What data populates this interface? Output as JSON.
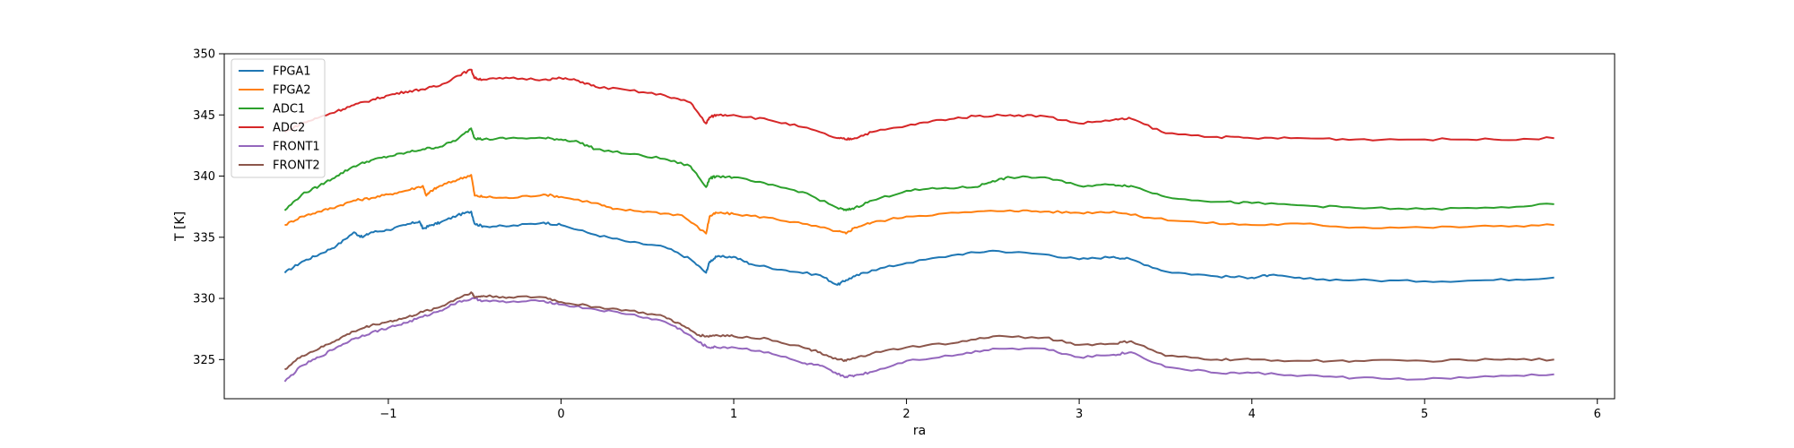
{
  "chart_data": {
    "type": "line",
    "title": "",
    "xlabel": "ra",
    "ylabel": "T [K]",
    "xlim": [
      -1.95,
      6.1
    ],
    "ylim": [
      321.8,
      350
    ],
    "xticks": [
      -1,
      0,
      1,
      2,
      3,
      4,
      5,
      6
    ],
    "xtick_labels": [
      "−1",
      "0",
      "1",
      "2",
      "3",
      "4",
      "5",
      "6"
    ],
    "yticks": [
      325,
      330,
      335,
      340,
      345,
      350
    ],
    "ytick_labels": [
      "325",
      "330",
      "335",
      "340",
      "345",
      "350"
    ],
    "grid": false,
    "legend": "top-left",
    "series": [
      {
        "name": "FPGA1",
        "color": "#1f77b4",
        "x": [
          -1.6,
          -1.5,
          -1.4,
          -1.3,
          -1.2,
          -1.15,
          -1.1,
          -1.0,
          -0.9,
          -0.82,
          -0.8,
          -0.75,
          -0.7,
          -0.6,
          -0.52,
          -0.5,
          -0.45,
          -0.3,
          -0.1,
          0.0,
          0.2,
          0.4,
          0.6,
          0.75,
          0.84,
          0.86,
          0.9,
          1.0,
          1.1,
          1.3,
          1.5,
          1.6,
          1.65,
          1.7,
          1.8,
          2.0,
          2.3,
          2.5,
          2.8,
          3.0,
          3.2,
          3.3,
          3.5,
          3.8,
          4.0,
          4.1,
          4.3,
          4.6,
          5.0,
          5.4,
          5.75
        ],
        "y": [
          332.1,
          333.0,
          333.6,
          334.3,
          335.4,
          335.0,
          335.4,
          335.6,
          336.0,
          336.3,
          335.7,
          336.0,
          336.2,
          336.8,
          337.1,
          336.1,
          335.9,
          335.9,
          336.2,
          336.0,
          335.2,
          334.6,
          334.2,
          333.2,
          332.1,
          333.0,
          333.4,
          333.4,
          332.8,
          332.3,
          331.9,
          331.1,
          331.5,
          331.8,
          332.3,
          332.9,
          333.6,
          333.9,
          333.6,
          333.2,
          333.4,
          333.2,
          332.2,
          331.8,
          331.7,
          331.9,
          331.6,
          331.5,
          331.4,
          331.5,
          331.7
        ]
      },
      {
        "name": "FPGA2",
        "color": "#ff7f0e",
        "x": [
          -1.6,
          -1.5,
          -1.4,
          -1.3,
          -1.2,
          -1.1,
          -1.0,
          -0.9,
          -0.8,
          -0.78,
          -0.75,
          -0.7,
          -0.6,
          -0.52,
          -0.5,
          -0.45,
          -0.3,
          -0.1,
          0.0,
          0.2,
          0.3,
          0.5,
          0.7,
          0.84,
          0.86,
          0.9,
          1.0,
          1.2,
          1.4,
          1.6,
          1.65,
          1.7,
          1.8,
          2.0,
          2.3,
          2.6,
          2.8,
          3.0,
          3.2,
          3.4,
          3.7,
          4.0,
          4.3,
          4.6,
          5.0,
          5.4,
          5.75
        ],
        "y": [
          336.0,
          336.7,
          337.1,
          337.5,
          338.0,
          338.2,
          338.5,
          338.8,
          339.2,
          338.4,
          338.8,
          339.2,
          339.7,
          340.1,
          338.4,
          338.3,
          338.2,
          338.5,
          338.3,
          337.8,
          337.3,
          337.1,
          336.8,
          335.3,
          336.7,
          337.0,
          336.9,
          336.6,
          336.1,
          335.5,
          335.3,
          335.8,
          336.2,
          336.7,
          337.0,
          337.2,
          337.1,
          337.0,
          337.1,
          336.6,
          336.2,
          336.0,
          336.1,
          335.8,
          335.8,
          335.9,
          336.0
        ]
      },
      {
        "name": "ADC1",
        "color": "#2ca02c",
        "x": [
          -1.6,
          -1.5,
          -1.4,
          -1.3,
          -1.2,
          -1.1,
          -1.0,
          -0.9,
          -0.8,
          -0.7,
          -0.6,
          -0.52,
          -0.5,
          -0.45,
          -0.3,
          -0.1,
          0.0,
          0.1,
          0.2,
          0.4,
          0.6,
          0.75,
          0.84,
          0.86,
          0.9,
          1.0,
          1.2,
          1.4,
          1.6,
          1.65,
          1.7,
          1.8,
          2.0,
          2.2,
          2.4,
          2.5,
          2.6,
          2.8,
          3.0,
          3.2,
          3.3,
          3.5,
          3.8,
          4.0,
          4.3,
          4.6,
          5.0,
          5.4,
          5.75
        ],
        "y": [
          337.2,
          338.5,
          339.2,
          340.0,
          340.8,
          341.3,
          341.6,
          341.9,
          342.2,
          342.4,
          343.0,
          343.9,
          343.1,
          343.0,
          343.1,
          343.1,
          343.0,
          342.8,
          342.2,
          341.8,
          341.4,
          340.8,
          339.1,
          339.8,
          340.0,
          339.9,
          339.3,
          338.7,
          337.4,
          337.2,
          337.4,
          338.0,
          338.8,
          339.0,
          339.1,
          339.6,
          339.9,
          339.9,
          339.2,
          339.3,
          339.2,
          338.3,
          337.9,
          337.8,
          337.6,
          337.4,
          337.3,
          337.4,
          337.7
        ]
      },
      {
        "name": "ADC2",
        "color": "#d62728",
        "x": [
          -1.6,
          -1.5,
          -1.4,
          -1.3,
          -1.2,
          -1.1,
          -1.0,
          -0.9,
          -0.8,
          -0.7,
          -0.6,
          -0.52,
          -0.5,
          -0.45,
          -0.3,
          -0.1,
          0.0,
          0.1,
          0.2,
          0.4,
          0.6,
          0.75,
          0.84,
          0.86,
          0.9,
          1.0,
          1.2,
          1.4,
          1.6,
          1.65,
          1.7,
          1.8,
          2.0,
          2.2,
          2.4,
          2.6,
          2.8,
          3.0,
          3.2,
          3.3,
          3.5,
          3.8,
          4.0,
          4.3,
          4.6,
          5.0,
          5.4,
          5.75
        ],
        "y": [
          343.6,
          344.3,
          344.8,
          345.3,
          345.8,
          346.2,
          346.6,
          346.9,
          347.1,
          347.4,
          348.2,
          348.7,
          348.0,
          347.9,
          348.0,
          347.9,
          348.0,
          347.8,
          347.3,
          347.0,
          346.6,
          346.0,
          344.3,
          344.8,
          345.0,
          345.0,
          344.6,
          344.0,
          343.1,
          343.0,
          343.1,
          343.6,
          344.1,
          344.6,
          344.9,
          345.0,
          344.9,
          344.3,
          344.6,
          344.7,
          343.5,
          343.2,
          343.1,
          343.1,
          343.0,
          343.0,
          343.0,
          343.1
        ]
      },
      {
        "name": "FRONT1",
        "color": "#9467bd",
        "x": [
          -1.6,
          -1.5,
          -1.4,
          -1.3,
          -1.2,
          -1.1,
          -1.0,
          -0.9,
          -0.8,
          -0.7,
          -0.6,
          -0.5,
          -0.45,
          -0.3,
          -0.1,
          0.0,
          0.2,
          0.4,
          0.6,
          0.7,
          0.8,
          0.85,
          0.9,
          1.0,
          1.2,
          1.4,
          1.5,
          1.6,
          1.65,
          1.7,
          1.8,
          2.0,
          2.3,
          2.5,
          2.8,
          3.0,
          3.2,
          3.3,
          3.5,
          3.8,
          4.0,
          4.3,
          4.6,
          5.0,
          5.4,
          5.75
        ],
        "y": [
          323.2,
          324.5,
          325.2,
          326.0,
          326.7,
          327.2,
          327.6,
          328.0,
          328.5,
          329.0,
          329.7,
          330.0,
          329.8,
          329.7,
          329.8,
          329.5,
          329.1,
          328.7,
          328.1,
          327.4,
          326.4,
          326.0,
          326.0,
          326.0,
          325.6,
          324.7,
          324.5,
          323.8,
          323.6,
          323.7,
          324.0,
          324.9,
          325.4,
          325.9,
          325.9,
          325.2,
          325.4,
          325.6,
          324.4,
          323.9,
          323.9,
          323.7,
          323.5,
          323.4,
          323.6,
          323.8
        ]
      },
      {
        "name": "FRONT2",
        "color": "#8c564b",
        "x": [
          -1.6,
          -1.5,
          -1.4,
          -1.3,
          -1.2,
          -1.1,
          -1.0,
          -0.9,
          -0.8,
          -0.7,
          -0.6,
          -0.52,
          -0.5,
          -0.45,
          -0.3,
          -0.1,
          0.0,
          0.2,
          0.4,
          0.6,
          0.7,
          0.8,
          0.85,
          0.9,
          1.0,
          1.2,
          1.4,
          1.5,
          1.6,
          1.65,
          1.7,
          1.8,
          2.0,
          2.3,
          2.5,
          2.8,
          3.0,
          3.2,
          3.3,
          3.5,
          3.8,
          4.0,
          4.3,
          4.6,
          5.0,
          5.4,
          5.75
        ],
        "y": [
          324.2,
          325.3,
          325.9,
          326.6,
          327.3,
          327.8,
          328.1,
          328.4,
          328.9,
          329.3,
          330.0,
          330.5,
          330.1,
          330.2,
          330.1,
          330.1,
          329.7,
          329.3,
          329.0,
          328.5,
          327.8,
          327.0,
          326.9,
          327.0,
          326.9,
          326.7,
          326.0,
          325.6,
          325.0,
          324.9,
          325.1,
          325.5,
          326.0,
          326.4,
          326.9,
          326.8,
          326.2,
          326.3,
          326.5,
          325.3,
          325.0,
          325.0,
          324.9,
          324.9,
          324.9,
          325.0,
          325.0
        ]
      }
    ]
  }
}
